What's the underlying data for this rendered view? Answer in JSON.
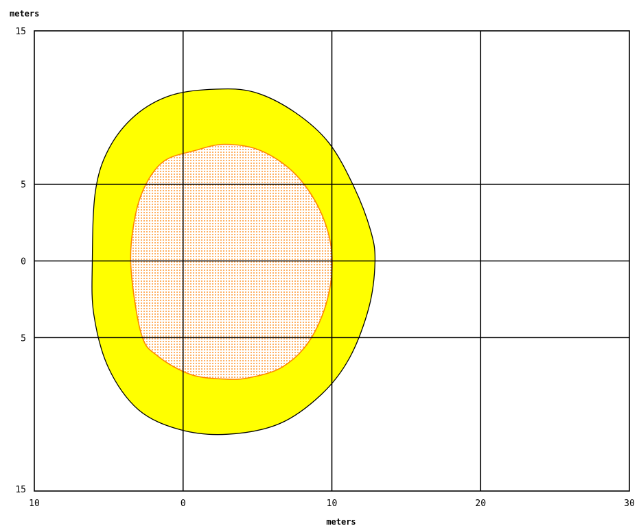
{
  "chart_data": {
    "type": "area",
    "title": "",
    "xlabel": "meters",
    "ylabel": "meters",
    "xlim": [
      -10,
      30
    ],
    "ylim": [
      -15,
      15
    ],
    "xticks": [
      {
        "value": -10,
        "label": "10"
      },
      {
        "value": 0,
        "label": "0"
      },
      {
        "value": 10,
        "label": "10"
      },
      {
        "value": 20,
        "label": "20"
      },
      {
        "value": 30,
        "label": "30"
      }
    ],
    "yticks": [
      {
        "value": 15,
        "label": "15"
      },
      {
        "value": 5,
        "label": "5"
      },
      {
        "value": 0,
        "label": "0"
      },
      {
        "value": -5,
        "label": "5"
      },
      {
        "value": -15,
        "label": "15"
      }
    ],
    "grid": true,
    "series": [
      {
        "fill": "#ffff00",
        "stroke": "#000000",
        "pattern": "solid",
        "x": [
          2.2,
          4.8,
          7.5,
          9.8,
          11.5,
          12.6,
          12.9,
          12.5,
          11.2,
          9.3,
          6.5,
          3.0,
          -0.2,
          -3.0,
          -5.0,
          -6.0,
          -6.1,
          -5.9,
          -5.0,
          -3.2,
          -0.8,
          2.2
        ],
        "y": [
          11.2,
          11.0,
          9.7,
          7.7,
          4.8,
          2.0,
          0.0,
          -3.0,
          -6.3,
          -8.7,
          -10.6,
          -11.3,
          -11.0,
          -9.7,
          -7.0,
          -3.5,
          0.0,
          4.5,
          7.3,
          9.5,
          10.8,
          11.2
        ]
      },
      {
        "fill": "#ffd8a8",
        "stroke": "#ff8800",
        "pattern": "dotted",
        "x": [
          2.8,
          5.2,
          7.5,
          9.2,
          10.0,
          9.7,
          8.5,
          6.7,
          4.5,
          2.8,
          0.5,
          -1.7,
          -2.8,
          -3.5,
          -3.3,
          -2.6,
          -1.3,
          0.8,
          2.8
        ],
        "y": [
          7.6,
          7.2,
          5.7,
          3.3,
          0.5,
          -2.5,
          -5.2,
          -6.9,
          -7.6,
          -7.7,
          -7.4,
          -6.2,
          -4.8,
          -0.5,
          2.5,
          4.8,
          6.5,
          7.2,
          7.6
        ]
      }
    ]
  }
}
